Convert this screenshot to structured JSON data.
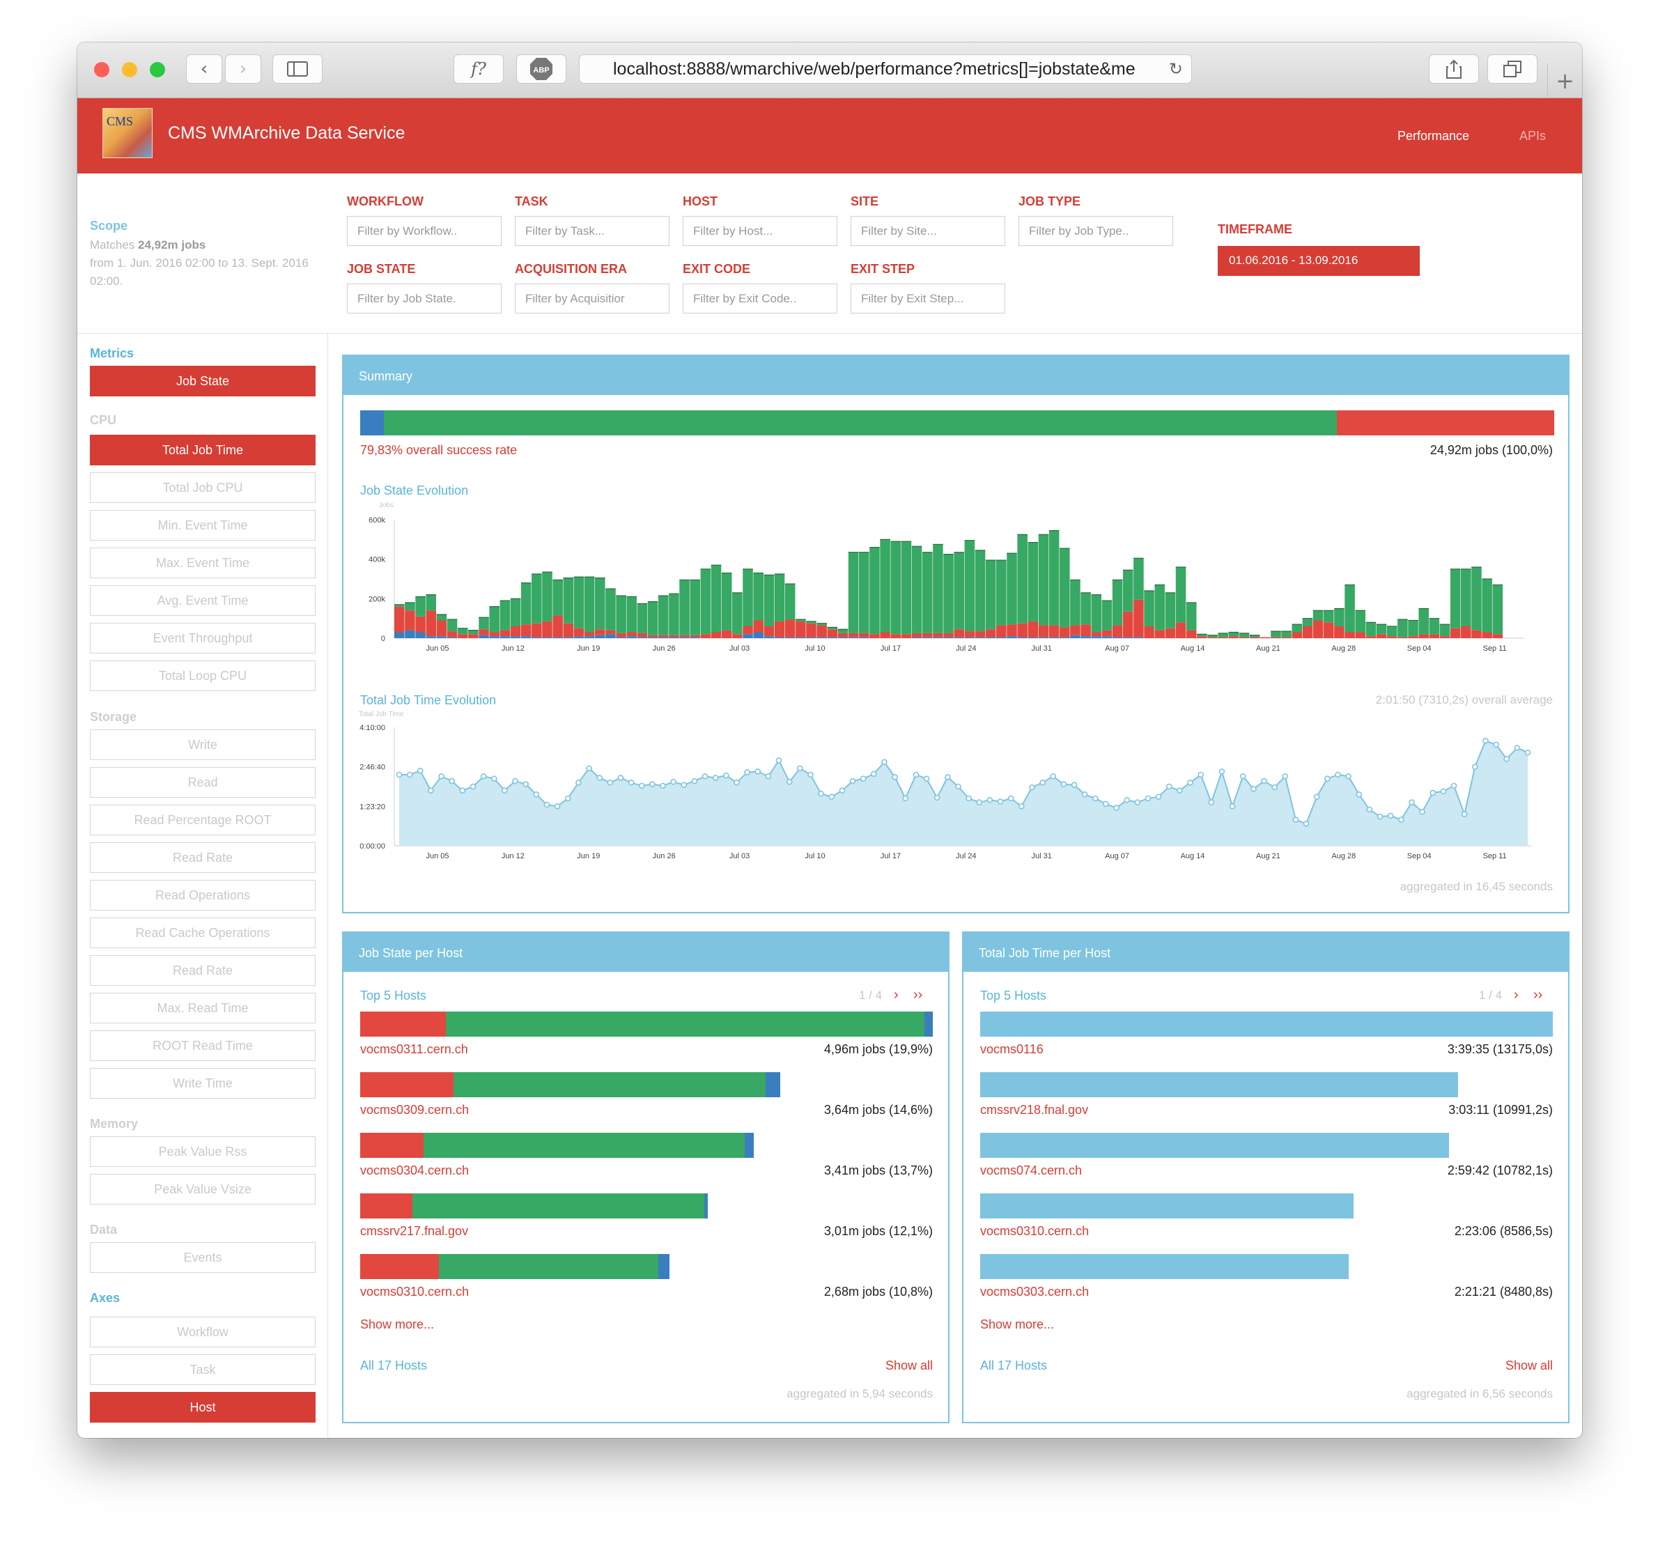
{
  "browser": {
    "url": "localhost:8888/wmarchive/web/performance?metrics[]=jobstate&me"
  },
  "app": {
    "title": "CMS WMArchive Data Service",
    "logo_text": "CMS",
    "nav": {
      "performance": "Performance",
      "apis": "APIs"
    }
  },
  "scope": {
    "title": "Scope",
    "matches_prefix": "Matches ",
    "matches_value": "24,92m jobs",
    "range": "from 1. Jun. 2016 02:00 to 13. Sept. 2016 02:00."
  },
  "filters": [
    {
      "label": "WORKFLOW",
      "placeholder": "Filter by Workflow.."
    },
    {
      "label": "TASK",
      "placeholder": "Filter by Task..."
    },
    {
      "label": "HOST",
      "placeholder": "Filter by Host..."
    },
    {
      "label": "SITE",
      "placeholder": "Filter by Site..."
    },
    {
      "label": "JOB TYPE",
      "placeholder": "Filter by Job Type.."
    },
    {
      "label": "JOB STATE",
      "placeholder": "Filter by Job State."
    },
    {
      "label": "ACQUISITION ERA",
      "placeholder": "Filter by Acquisitior"
    },
    {
      "label": "EXIT CODE",
      "placeholder": "Filter by Exit Code.."
    },
    {
      "label": "EXIT STEP",
      "placeholder": "Filter by Exit Step..."
    }
  ],
  "timeframe": {
    "label": "TIMEFRAME",
    "value": "01.06.2016 - 13.09.2016"
  },
  "sidebar": {
    "metrics_heading": "Metrics",
    "job_state": "Job State",
    "cpu_heading": "CPU",
    "cpu": [
      "Total Job Time",
      "Total Job CPU",
      "Min. Event Time",
      "Max. Event Time",
      "Avg. Event Time",
      "Event Throughput",
      "Total Loop CPU"
    ],
    "storage_heading": "Storage",
    "storage": [
      "Write",
      "Read",
      "Read Percentage ROOT",
      "Read Rate",
      "Read Operations",
      "Read Cache Operations",
      "Read Rate",
      "Max. Read Time",
      "ROOT Read Time",
      "Write Time"
    ],
    "memory_heading": "Memory",
    "memory": [
      "Peak Value Rss",
      "Peak Value Vsize"
    ],
    "data_heading": "Data",
    "data": [
      "Events"
    ],
    "axes_heading": "Axes",
    "axes": [
      "Workflow",
      "Task",
      "Host"
    ]
  },
  "colors": {
    "red": "#e2483f",
    "green": "#37a964",
    "blue": "#3a7ebf",
    "light_blue": "#7ec4e0"
  },
  "summary": {
    "title": "Summary",
    "state_fractions": {
      "blue": 0.02,
      "green": 0.798,
      "red": 0.182
    },
    "success_rate": "79,83% overall success rate",
    "total": "24,92m jobs (100,0%)",
    "job_state_evolution_title": "Job State Evolution",
    "total_job_time_evolution_title": "Total Job Time Evolution",
    "average": "2:01:50 (7310,2s) overall average",
    "aggregated": "aggregated in 16,45 seconds"
  },
  "chart_data": [
    {
      "type": "bar",
      "stacked": true,
      "title": "Job State Evolution",
      "ylabel": "Jobs",
      "ylim": [
        0,
        600000
      ],
      "yticks": [
        "0",
        "200k",
        "400k",
        "600k"
      ],
      "xticks": [
        "Jun 05",
        "Jun 12",
        "Jun 19",
        "Jun 26",
        "Jul 03",
        "Jul 10",
        "Jul 17",
        "Jul 24",
        "Jul 31",
        "Aug 07",
        "Aug 14",
        "Aug 21",
        "Aug 28",
        "Sep 04",
        "Sep 11"
      ],
      "series": [
        {
          "color": "#3a7ebf",
          "values": [
            30000,
            40000,
            30000,
            10000,
            10000,
            5000,
            0,
            0,
            15000,
            10000,
            10000,
            10000,
            10000,
            5000,
            5000,
            5000,
            5000,
            10000,
            10000,
            15000,
            20000,
            5000,
            10000,
            5000,
            5000,
            5000,
            5000,
            5000,
            5000,
            0,
            0,
            0,
            0,
            20000,
            30000,
            10000,
            5000,
            5000,
            5000,
            5000,
            5000,
            5000,
            5000,
            5000,
            5000,
            0,
            0,
            0,
            0,
            5000,
            5000,
            5000,
            5000,
            5000,
            5000,
            5000,
            5000,
            5000,
            10000,
            5000,
            5000,
            5000,
            5000,
            5000,
            15000,
            10000,
            10000,
            10000,
            5000,
            5000,
            5000,
            0,
            0,
            0,
            0,
            0,
            0,
            0,
            0,
            0,
            0,
            0,
            0,
            0,
            0,
            0,
            0,
            0,
            0,
            0,
            0,
            0,
            0,
            0,
            0,
            0,
            0,
            0,
            0,
            0,
            0,
            0,
            0,
            0,
            0,
            0,
            0
          ]
        },
        {
          "color": "#e2483f",
          "values": [
            130000,
            100000,
            80000,
            130000,
            80000,
            30000,
            20000,
            20000,
            30000,
            20000,
            30000,
            50000,
            60000,
            70000,
            80000,
            110000,
            70000,
            40000,
            20000,
            30000,
            20000,
            20000,
            20000,
            20000,
            10000,
            10000,
            10000,
            10000,
            10000,
            20000,
            30000,
            40000,
            20000,
            40000,
            60000,
            50000,
            80000,
            90000,
            80000,
            70000,
            60000,
            40000,
            20000,
            20000,
            20000,
            20000,
            30000,
            20000,
            20000,
            20000,
            20000,
            20000,
            20000,
            40000,
            30000,
            30000,
            40000,
            60000,
            60000,
            70000,
            80000,
            60000,
            60000,
            50000,
            50000,
            60000,
            20000,
            30000,
            60000,
            130000,
            190000,
            60000,
            40000,
            50000,
            80000,
            40000,
            10000,
            5000,
            5000,
            10000,
            5000,
            5000,
            5000,
            5000,
            5000,
            30000,
            60000,
            90000,
            80000,
            60000,
            30000,
            30000,
            10000,
            20000,
            10000,
            5000,
            10000,
            20000,
            20000,
            10000,
            50000,
            60000,
            40000,
            30000,
            20000
          ]
        },
        {
          "color": "#37a964",
          "values": [
            10000,
            40000,
            100000,
            80000,
            30000,
            60000,
            30000,
            20000,
            60000,
            130000,
            150000,
            140000,
            210000,
            250000,
            250000,
            180000,
            230000,
            260000,
            280000,
            260000,
            210000,
            190000,
            180000,
            150000,
            170000,
            200000,
            210000,
            280000,
            280000,
            330000,
            340000,
            290000,
            210000,
            290000,
            240000,
            260000,
            240000,
            180000,
            10000,
            10000,
            10000,
            10000,
            20000,
            410000,
            410000,
            440000,
            470000,
            470000,
            470000,
            440000,
            410000,
            450000,
            400000,
            390000,
            460000,
            410000,
            350000,
            330000,
            360000,
            450000,
            400000,
            460000,
            480000,
            400000,
            230000,
            160000,
            190000,
            150000,
            230000,
            210000,
            210000,
            180000,
            230000,
            180000,
            280000,
            140000,
            10000,
            10000,
            20000,
            20000,
            20000,
            10000,
            0,
            30000,
            30000,
            40000,
            40000,
            50000,
            60000,
            90000,
            240000,
            110000,
            70000,
            50000,
            50000,
            90000,
            80000,
            130000,
            80000,
            60000,
            300000,
            290000,
            320000,
            270000,
            250000
          ]
        }
      ]
    },
    {
      "type": "area",
      "title": "Total Job Time Evolution",
      "ylabel": "Total Job Time",
      "ylim": [
        0,
        15000
      ],
      "yticks": [
        "0:00:00",
        "1:23:20",
        "2:46:40",
        "4:10:00"
      ],
      "xticks": [
        "Jun 05",
        "Jun 12",
        "Jun 19",
        "Jun 26",
        "Jul 03",
        "Jul 10",
        "Jul 17",
        "Jul 24",
        "Jul 31",
        "Aug 07",
        "Aug 14",
        "Aug 21",
        "Aug 28",
        "Sep 04",
        "Sep 11"
      ],
      "y": [
        9000,
        9000,
        9500,
        7000,
        8800,
        8200,
        7000,
        7500,
        8800,
        8500,
        7000,
        8200,
        7800,
        6500,
        5200,
        5000,
        6000,
        8000,
        9800,
        8600,
        8000,
        8600,
        8000,
        7600,
        7800,
        7600,
        8100,
        7700,
        8200,
        8800,
        8600,
        8900,
        8000,
        9300,
        9400,
        8800,
        10800,
        8100,
        9800,
        9000,
        6600,
        6200,
        7000,
        8200,
        8500,
        9100,
        10600,
        8700,
        6000,
        9000,
        8500,
        6100,
        8700,
        7500,
        6000,
        5500,
        5800,
        5600,
        6000,
        5000,
        7400,
        8000,
        8800,
        7800,
        7700,
        6500,
        6000,
        5300,
        4800,
        5800,
        5500,
        6000,
        6200,
        7500,
        7000,
        8000,
        9000,
        5500,
        9400,
        5000,
        8800,
        7200,
        8200,
        7400,
        8800,
        3300,
        2800,
        6200,
        8500,
        9000,
        8800,
        6500,
        4600,
        3700,
        3800,
        3300,
        5500,
        4300,
        6700,
        6900,
        7600,
        4000,
        10000,
        13300,
        12800,
        11000,
        12400,
        11800
      ]
    },
    {
      "type": "bar",
      "stacked": true,
      "horizontal": true,
      "title": "Job State per Host",
      "categories": [
        "vocms0311.cern.ch",
        "vocms0309.cern.ch",
        "vocms0304.cern.ch",
        "cmssrv217.fnal.gov",
        "vocms0310.cern.ch"
      ],
      "series": [
        {
          "color": "#e2483f",
          "values": [
            0.74,
            0.81,
            0.55,
            0.45,
            0.68
          ]
        },
        {
          "color": "#37a964",
          "values": [
            4.15,
            2.7,
            2.78,
            2.53,
            1.9
          ]
        },
        {
          "color": "#3a7ebf",
          "values": [
            0.07,
            0.13,
            0.08,
            0.03,
            0.1
          ]
        }
      ],
      "labels": [
        "4,96m jobs (19,9%)",
        "3,64m jobs (14,6%)",
        "3,41m jobs (13,7%)",
        "3,01m jobs (12,1%)",
        "2,68m jobs (10,8%)"
      ]
    },
    {
      "type": "bar",
      "horizontal": true,
      "title": "Total Job Time per Host",
      "categories": [
        "vocms0116",
        "cmssrv218.fnal.gov",
        "vocms074.cern.ch",
        "vocms0310.cern.ch",
        "vocms0303.cern.ch"
      ],
      "values": [
        13175.0,
        10991.2,
        10782.1,
        8586.5,
        8480.8
      ],
      "labels": [
        "3:39:35 (13175,0s)",
        "3:03:11 (10991,2s)",
        "2:59:42 (10782,1s)",
        "2:23:06 (8586,5s)",
        "2:21:21 (8480,8s)"
      ]
    }
  ],
  "host_state": {
    "title": "Job State per Host",
    "top": "Top 5 Hosts",
    "pager": "1 / 4",
    "next": "›",
    "last": "››",
    "show_more": "Show more...",
    "all": "All 17 Hosts",
    "show_all": "Show all",
    "aggregated": "aggregated in 5,94 seconds"
  },
  "host_time": {
    "title": "Total Job Time per Host",
    "top": "Top 5 Hosts",
    "pager": "1 / 4",
    "next": "›",
    "last": "››",
    "show_more": "Show more...",
    "all": "All 17 Hosts",
    "show_all": "Show all",
    "aggregated": "aggregated in 6,56 seconds"
  }
}
